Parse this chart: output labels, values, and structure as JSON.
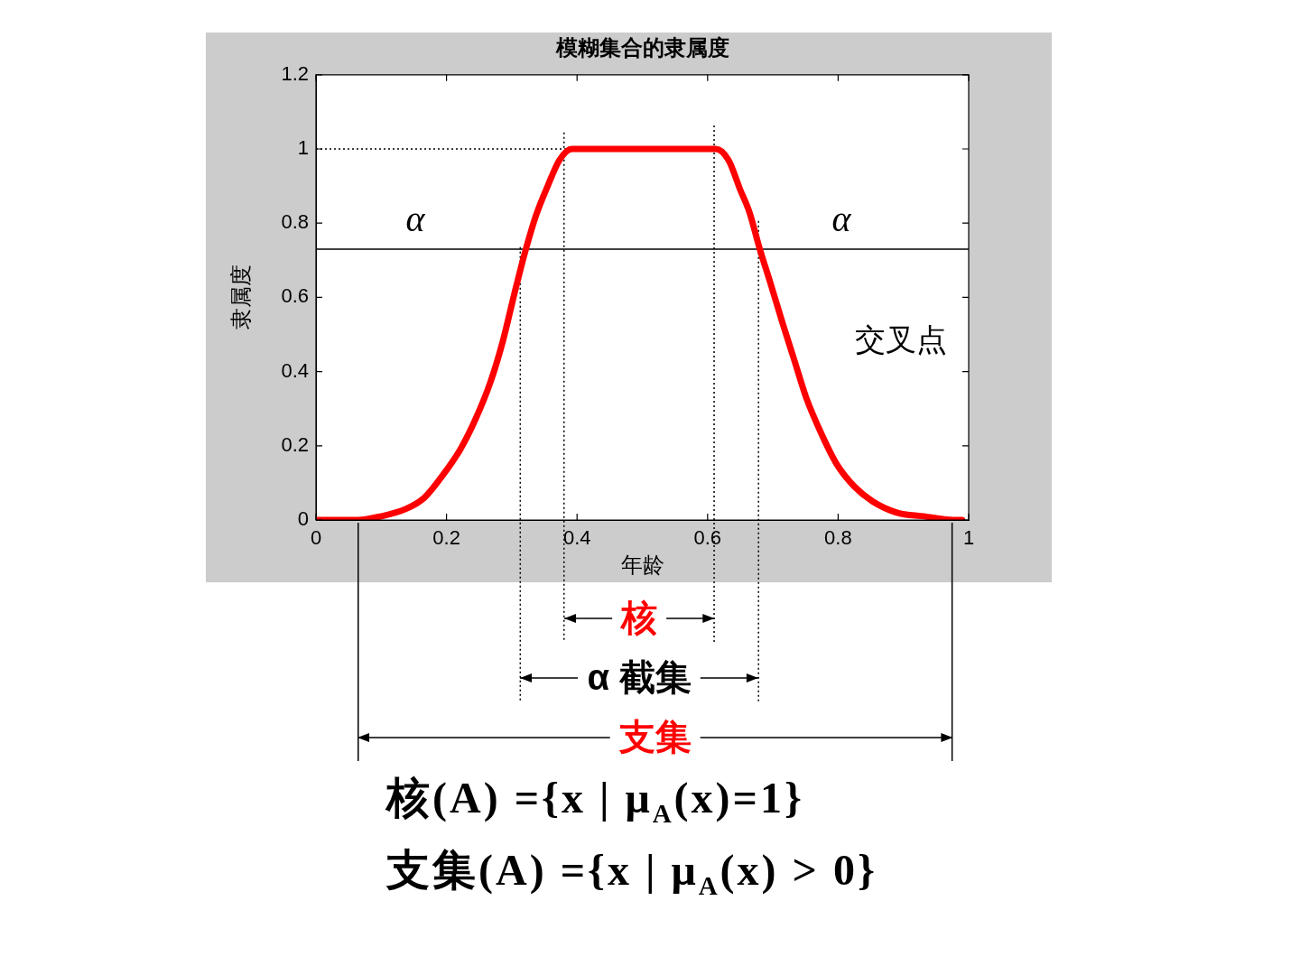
{
  "chart_data": {
    "type": "line",
    "title": "模糊集合的隶属度",
    "xlabel": "年龄",
    "ylabel": "隶属度",
    "x": [
      0,
      0.05,
      0.064,
      0.1,
      0.138,
      0.166,
      0.194,
      0.221,
      0.244,
      0.267,
      0.286,
      0.304,
      0.32,
      0.337,
      0.355,
      0.373,
      0.392,
      0.405,
      0.595,
      0.613,
      0.632,
      0.65,
      0.664,
      0.68,
      0.696,
      0.715,
      0.733,
      0.751,
      0.775,
      0.798,
      0.825,
      0.853,
      0.89,
      0.931,
      0.976,
      0.99
    ],
    "series": [
      {
        "color": "#ff0000",
        "values": [
          0,
          0,
          0,
          0.01,
          0.03,
          0.06,
          0.12,
          0.19,
          0.27,
          0.37,
          0.48,
          0.61,
          0.72,
          0.82,
          0.9,
          0.97,
          1,
          1,
          1,
          1,
          0.97,
          0.89,
          0.83,
          0.73,
          0.64,
          0.53,
          0.43,
          0.33,
          0.23,
          0.15,
          0.09,
          0.05,
          0.02,
          0.01,
          0,
          0
        ]
      }
    ],
    "xlim": [
      0,
      1
    ],
    "xticks": [
      0,
      0.2,
      0.4,
      0.6,
      0.8,
      1
    ],
    "ylim": [
      0,
      1.2
    ],
    "yticks": [
      0,
      0.2,
      0.4,
      0.6,
      0.8,
      1,
      1.2
    ],
    "marker": "none",
    "line_style": "solid",
    "ref_lines": [
      {
        "axis": "y",
        "value": 0.73,
        "color": "#000000",
        "line_style": "solid"
      },
      {
        "axis": "y",
        "value": 1,
        "color": "#000000",
        "line_style": "dotted"
      },
      {
        "axis": "x",
        "value": 0.38,
        "color": "#000000",
        "line_style": "dotted"
      },
      {
        "axis": "x",
        "value": 0.61,
        "color": "#000000",
        "line_style": "dotted"
      },
      {
        "axis": "x",
        "value": 0.313,
        "color": "#000000",
        "line_style": "dotted"
      },
      {
        "axis": "x",
        "value": 0.678,
        "color": "#000000",
        "line_style": "dotted"
      }
    ],
    "annotations": [
      {
        "text": "α",
        "x": 0.152,
        "y": 0.73
      },
      {
        "text": "α",
        "x": 0.805,
        "y": 0.73
      },
      "交叉点",
      "核",
      "α 截集",
      "支集",
      "核(A) ={x | μ$_{A}$(x)=1}",
      "支集(A) ={x | μ$_{A}$(x) > 0}"
    ]
  }
}
